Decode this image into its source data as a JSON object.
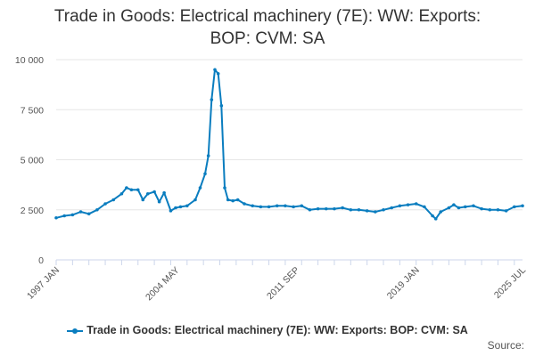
{
  "title_line1": "Trade in Goods: Electrical machinery (7E): WW: Exports:",
  "title_line2": "BOP: CVM: SA",
  "legend_label": "Trade in Goods: Electrical machinery (7E): WW: Exports: BOP: CVM: SA",
  "source_label": "Source:",
  "colors": {
    "series": "#0a7dbf",
    "grid": "#e6e6e6",
    "axis": "#ccd6eb",
    "text": "#555555"
  },
  "chart_data": {
    "type": "line",
    "title": "Trade in Goods: Electrical machinery (7E): WW: Exports: BOP: CVM: SA",
    "series": [
      {
        "name": "Trade in Goods: Electrical machinery (7E): WW: Exports: BOP: CVM: SA",
        "x": [
          1997.0,
          1997.5,
          1998.0,
          1998.5,
          1999.0,
          1999.5,
          2000.0,
          2000.5,
          2001.0,
          2001.3,
          2001.6,
          2002.0,
          2002.3,
          2002.6,
          2003.0,
          2003.3,
          2003.6,
          2004.0,
          2004.3,
          2004.6,
          2005.0,
          2005.5,
          2005.8,
          2006.1,
          2006.3,
          2006.5,
          2006.7,
          2006.9,
          2007.1,
          2007.3,
          2007.5,
          2007.8,
          2008.1,
          2008.5,
          2009.0,
          2009.5,
          2010.0,
          2010.5,
          2011.0,
          2011.5,
          2012.0,
          2012.5,
          2013.0,
          2013.5,
          2014.0,
          2014.5,
          2015.0,
          2015.5,
          2016.0,
          2016.5,
          2017.0,
          2017.5,
          2018.0,
          2018.5,
          2019.0,
          2019.5,
          2020.0,
          2020.2,
          2020.5,
          2021.0,
          2021.3,
          2021.6,
          2022.0,
          2022.5,
          2023.0,
          2023.5,
          2024.0,
          2024.5,
          2025.0,
          2025.5
        ],
        "y": [
          2100,
          2200,
          2250,
          2400,
          2300,
          2500,
          2800,
          3000,
          3300,
          3600,
          3500,
          3500,
          3000,
          3300,
          3400,
          2900,
          3350,
          2450,
          2600,
          2650,
          2700,
          3000,
          3600,
          4300,
          5200,
          8000,
          9500,
          9300,
          7700,
          3600,
          3000,
          2950,
          3000,
          2800,
          2700,
          2650,
          2650,
          2700,
          2700,
          2650,
          2700,
          2500,
          2550,
          2550,
          2550,
          2600,
          2500,
          2500,
          2450,
          2400,
          2500,
          2600,
          2700,
          2750,
          2800,
          2650,
          2200,
          2050,
          2400,
          2600,
          2750,
          2600,
          2650,
          2700,
          2550,
          2500,
          2500,
          2450,
          2650,
          2700
        ]
      }
    ],
    "x_ticks": [
      "1997 JAN",
      "2004 MAY",
      "2011 SEP",
      "2019 JAN",
      "2025 JUL"
    ],
    "y_ticks": [
      "0",
      "2 500",
      "5 000",
      "7 500",
      "10 000"
    ],
    "ylim": [
      0,
      10000
    ],
    "grid": "horizontal",
    "legend": "bottom-center"
  }
}
